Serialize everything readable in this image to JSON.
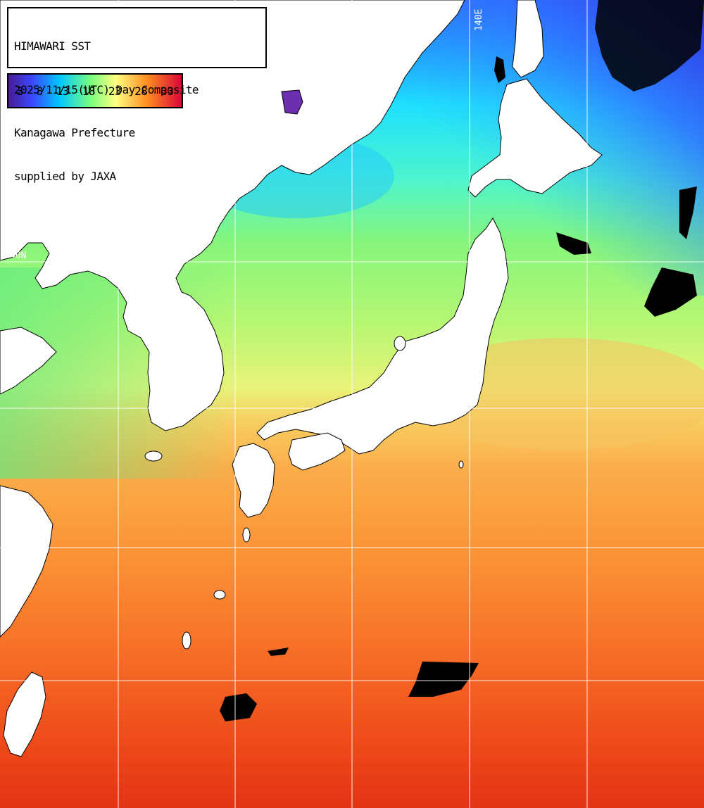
{
  "title": {
    "line1": "HIMAWARI SST",
    "line2": "2025/11/15(UTC) Day Composite",
    "line3": "Kanagawa Prefecture",
    "line4": "supplied by JAXA"
  },
  "legend": {
    "ticks": [
      "3",
      "8",
      "13",
      "18",
      "23",
      "28",
      "33"
    ],
    "unit_scale_colors": [
      "#3b1a8c",
      "#2040ff",
      "#00c8ff",
      "#7dff7d",
      "#ffff80",
      "#ff8a20",
      "#e00020"
    ]
  },
  "grid": {
    "lon_label": "140E",
    "lat_label": "40N"
  },
  "colors": {
    "land": "#ffffff",
    "cloud": "#000000",
    "grid": "#ffffff"
  }
}
